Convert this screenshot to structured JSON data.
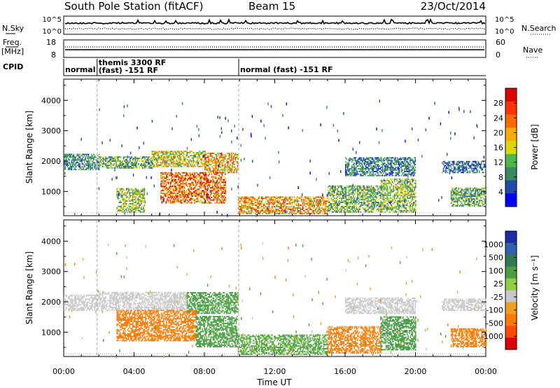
{
  "header": {
    "station": "South Pole Station (fitACF)",
    "beam": "Beam 15",
    "date": "23/Oct/2014"
  },
  "sky_panel": {
    "left_label": "N.Sky",
    "right_label": "N.Search",
    "left_ticks": [
      "10^5",
      "10^0"
    ],
    "right_ticks": [
      "10^5",
      "10^0"
    ]
  },
  "freq_panel": {
    "left_label_top": "Freq.",
    "left_label_bottom": "[MHz]",
    "right_label": "Nave",
    "left_ticks": [
      "18",
      "8"
    ],
    "right_ticks": [
      "60",
      "0"
    ]
  },
  "cpid": {
    "label": "CPID",
    "segments": [
      {
        "start_hour": 0,
        "end_hour": 1.9,
        "line1": "normal",
        "line2": ""
      },
      {
        "start_hour": 1.9,
        "end_hour": 9.95,
        "line1": "themis 3300 RF",
        "line2": "(fast) -151 RF"
      },
      {
        "start_hour": 9.95,
        "end_hour": 24,
        "line1": "normal (fast) -151 RF",
        "line2": ""
      }
    ]
  },
  "power_colorbar": {
    "label": "Power [dB]",
    "ticks": [
      "28",
      "24",
      "20",
      "16",
      "12",
      "8",
      "4"
    ],
    "colors": [
      "#e00000",
      "#ff3300",
      "#ff6a00",
      "#ffaa00",
      "#dcd800",
      "#4cb848",
      "#3a8a60",
      "#1e4aa8",
      "#0000ff"
    ]
  },
  "velocity_colorbar": {
    "label": "Velocity [m s⁻¹]",
    "ticks": [
      "1000",
      "500",
      "100",
      "25",
      "-25",
      "-100",
      "-500",
      "-1000"
    ],
    "colors": [
      "#1e2aa8",
      "#3060b0",
      "#2f7a55",
      "#48a040",
      "#8ed040",
      "#c8c8c8",
      "#f0a020",
      "#ff7a00",
      "#ff4a00",
      "#e00000"
    ]
  },
  "chart_data": [
    {
      "type": "heatmap",
      "panel": "power",
      "ylabel": "Slant Range [km]",
      "yticks": [
        1000,
        2000,
        3000,
        4000
      ],
      "ylim": [
        200,
        4700
      ],
      "xlim_hours": [
        0,
        24
      ],
      "dashed_lines_hours": [
        1.9,
        9.95
      ],
      "value_unit": "dB",
      "vlim": [
        0,
        32
      ],
      "regions": [
        {
          "t0": 0.0,
          "t1": 2.0,
          "r0": 1700,
          "r1": 2200,
          "v": 9
        },
        {
          "t0": 2.0,
          "t1": 5.0,
          "r0": 1750,
          "r1": 2150,
          "v": 11
        },
        {
          "t0": 5.0,
          "t1": 8.0,
          "r0": 1800,
          "r1": 2300,
          "v": 16
        },
        {
          "t0": 8.0,
          "t1": 9.9,
          "r0": 1600,
          "r1": 2250,
          "v": 20
        },
        {
          "t0": 5.5,
          "t1": 9.2,
          "r0": 600,
          "r1": 1600,
          "v": 24
        },
        {
          "t0": 3.0,
          "t1": 4.6,
          "r0": 300,
          "r1": 1100,
          "v": 14
        },
        {
          "t0": 9.9,
          "t1": 15.0,
          "r0": 250,
          "r1": 800,
          "v": 20
        },
        {
          "t0": 15.0,
          "t1": 18.0,
          "r0": 300,
          "r1": 1200,
          "v": 12
        },
        {
          "t0": 18.0,
          "t1": 20.0,
          "r0": 300,
          "r1": 1400,
          "v": 13
        },
        {
          "t0": 16.0,
          "t1": 20.0,
          "r0": 1500,
          "r1": 2100,
          "v": 8
        },
        {
          "t0": 21.5,
          "t1": 24.0,
          "r0": 1600,
          "r1": 2000,
          "v": 7
        },
        {
          "t0": 22.0,
          "t1": 24.0,
          "r0": 500,
          "r1": 1100,
          "v": 11
        }
      ]
    },
    {
      "type": "heatmap",
      "panel": "velocity",
      "xlabel": "Time UT",
      "ylabel": "Slant Range [km]",
      "yticks": [
        1000,
        2000,
        3000,
        4000
      ],
      "ylim": [
        200,
        4700
      ],
      "xlim_hours": [
        0,
        24
      ],
      "xticks": [
        "00:00",
        "04:00",
        "08:00",
        "12:00",
        "16:00",
        "20:00",
        "00:00"
      ],
      "dashed_lines_hours": [
        1.9,
        9.95
      ],
      "value_unit": "m s⁻¹",
      "regions": [
        {
          "t0": 0.0,
          "t1": 2.0,
          "r0": 1700,
          "r1": 2200,
          "v": 0
        },
        {
          "t0": 2.0,
          "t1": 7.0,
          "r0": 1700,
          "r1": 2300,
          "v": 5
        },
        {
          "t0": 7.0,
          "t1": 9.9,
          "r0": 1600,
          "r1": 2300,
          "v": 300
        },
        {
          "t0": 3.0,
          "t1": 7.5,
          "r0": 700,
          "r1": 1700,
          "v": -300
        },
        {
          "t0": 7.5,
          "t1": 9.9,
          "r0": 500,
          "r1": 1500,
          "v": 150
        },
        {
          "t0": 9.9,
          "t1": 15.0,
          "r0": 250,
          "r1": 900,
          "v": 120
        },
        {
          "t0": 15.0,
          "t1": 18.0,
          "r0": 300,
          "r1": 1200,
          "v": -250
        },
        {
          "t0": 18.0,
          "t1": 20.0,
          "r0": 400,
          "r1": 1500,
          "v": 400
        },
        {
          "t0": 16.0,
          "t1": 20.0,
          "r0": 1600,
          "r1": 2100,
          "v": 0
        },
        {
          "t0": 21.5,
          "t1": 24.0,
          "r0": 1700,
          "r1": 2100,
          "v": 0
        },
        {
          "t0": 22.0,
          "t1": 24.0,
          "r0": 500,
          "r1": 1100,
          "v": -300
        }
      ]
    }
  ]
}
